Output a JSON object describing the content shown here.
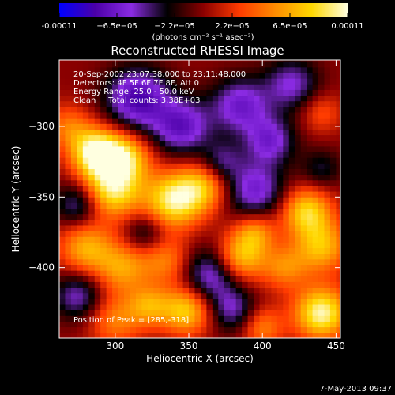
{
  "chart_data": {
    "type": "heatmap",
    "title": "Reconstructed RHESSI Image",
    "xlabel": "Heliocentric X (arcsec)",
    "ylabel": "Heliocentric Y (arcsec)",
    "xlim": [
      262,
      453
    ],
    "ylim": [
      -450,
      -253
    ],
    "x_ticks": [
      300,
      350,
      400,
      450
    ],
    "y_ticks": [
      -300,
      -350,
      -400
    ],
    "colorbar": {
      "range": [
        -0.00011,
        0.00011
      ],
      "tick_labels": [
        "-0.00011",
        "−6.5e−05",
        "−2.2e−05",
        "2.2e−05",
        "6.5e−05",
        "0.00011"
      ],
      "unit_label": "(photons cm⁻² s⁻¹ asec⁻²)",
      "colors": [
        "#0000ff",
        "#4b00a8",
        "#8a2be2",
        "#000000",
        "#8b0000",
        "#ff3b00",
        "#ff8c00",
        "#ffd700",
        "#ffffe0"
      ]
    },
    "annotations": [
      "20-Sep-2002 23:07:38.000 to 23:11:48.000",
      "Detectors: 4F 5F 6F 7F 8F, Att 0",
      "Energy Range: 25.0 - 50.0 keV",
      "Clean     Total counts: 3.38E+03"
    ],
    "peak": {
      "label": "Position of Peak = [285,-318]",
      "x": 285,
      "y": -318
    },
    "date_label": "7-May-2013 09:37",
    "blobs": [
      {
        "x": 287,
        "y": -318,
        "v": 1.0,
        "s": 12
      },
      {
        "x": 307,
        "y": -322,
        "v": 0.7,
        "s": 12
      },
      {
        "x": 298,
        "y": -345,
        "v": 0.85,
        "s": 14
      },
      {
        "x": 340,
        "y": -352,
        "v": 0.9,
        "s": 14
      },
      {
        "x": 360,
        "y": -342,
        "v": 0.55,
        "s": 12
      },
      {
        "x": 280,
        "y": -386,
        "v": 0.6,
        "s": 13
      },
      {
        "x": 305,
        "y": -400,
        "v": 0.55,
        "s": 13
      },
      {
        "x": 335,
        "y": -395,
        "v": 0.45,
        "s": 12
      },
      {
        "x": 300,
        "y": -437,
        "v": 0.45,
        "s": 13
      },
      {
        "x": 348,
        "y": -430,
        "v": 0.75,
        "s": 12
      },
      {
        "x": 323,
        "y": -427,
        "v": 0.5,
        "s": 10
      },
      {
        "x": 385,
        "y": -393,
        "v": 0.7,
        "s": 12
      },
      {
        "x": 395,
        "y": -375,
        "v": 0.5,
        "s": 10
      },
      {
        "x": 430,
        "y": -360,
        "v": 0.75,
        "s": 12
      },
      {
        "x": 440,
        "y": -385,
        "v": 0.65,
        "s": 13
      },
      {
        "x": 415,
        "y": -400,
        "v": 0.45,
        "s": 11
      },
      {
        "x": 440,
        "y": -432,
        "v": 0.95,
        "s": 13
      },
      {
        "x": 400,
        "y": -442,
        "v": 0.45,
        "s": 10
      },
      {
        "x": 268,
        "y": -300,
        "v": 0.4,
        "s": 11
      },
      {
        "x": 440,
        "y": -290,
        "v": 0.3,
        "s": 10
      },
      {
        "x": 315,
        "y": -280,
        "v": -0.75,
        "s": 15
      },
      {
        "x": 345,
        "y": -300,
        "v": -0.65,
        "s": 14
      },
      {
        "x": 385,
        "y": -285,
        "v": -0.6,
        "s": 14
      },
      {
        "x": 405,
        "y": -310,
        "v": -0.55,
        "s": 12
      },
      {
        "x": 420,
        "y": -270,
        "v": -0.5,
        "s": 13
      },
      {
        "x": 395,
        "y": -345,
        "v": -0.6,
        "s": 14
      },
      {
        "x": 372,
        "y": -325,
        "v": -0.4,
        "s": 10
      },
      {
        "x": 275,
        "y": -355,
        "v": -0.5,
        "s": 11
      },
      {
        "x": 320,
        "y": -375,
        "v": -0.35,
        "s": 10
      },
      {
        "x": 365,
        "y": -405,
        "v": -0.6,
        "s": 14
      },
      {
        "x": 380,
        "y": -430,
        "v": -0.45,
        "s": 11
      },
      {
        "x": 275,
        "y": -420,
        "v": -0.5,
        "s": 12
      },
      {
        "x": 440,
        "y": -330,
        "v": -0.3,
        "s": 10
      }
    ]
  }
}
